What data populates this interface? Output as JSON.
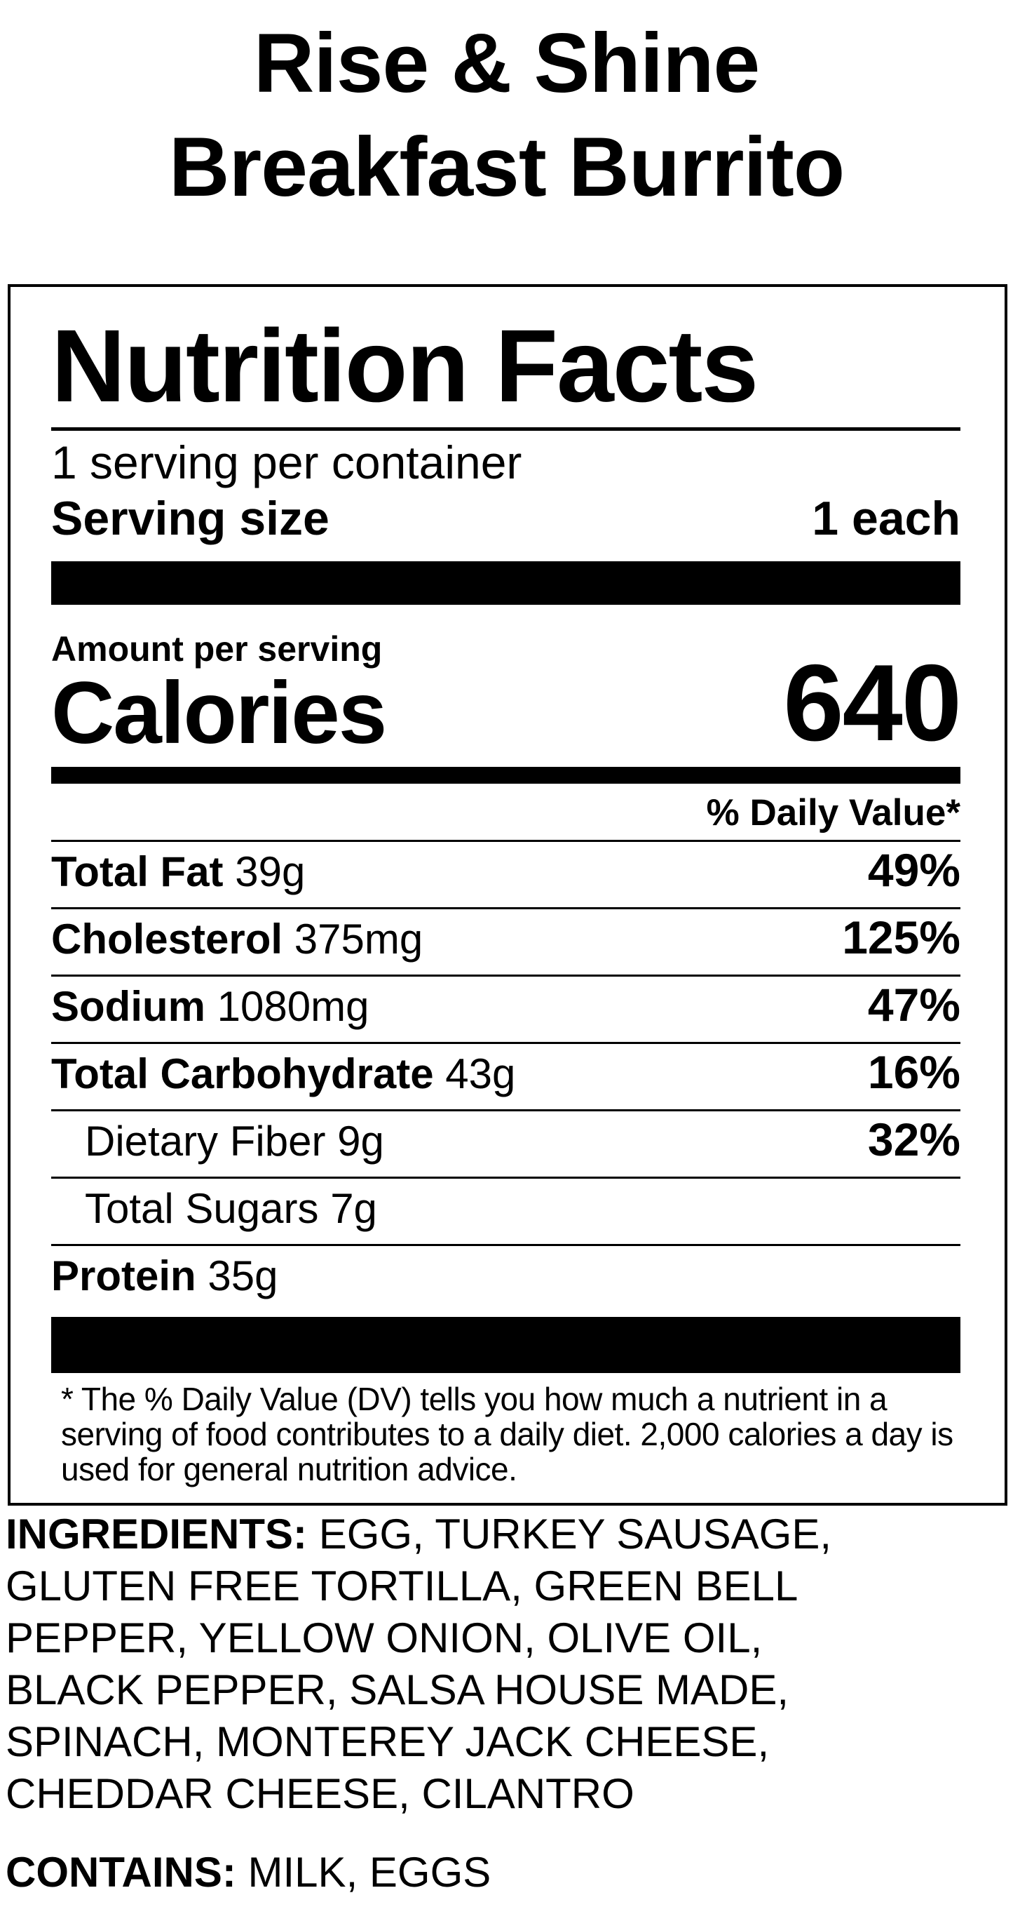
{
  "title": {
    "lines": [
      "Rise & Shine",
      "Breakfast Burrito"
    ]
  },
  "nutrition_label": {
    "heading": "Nutrition Facts",
    "servings_per_container": "1 serving per container",
    "serving_size": {
      "label": "Serving size",
      "value": "1 each"
    },
    "amount_per_serving": "Amount per serving",
    "calories": {
      "label": "Calories",
      "value": "640"
    },
    "daily_value_header": "% Daily Value*",
    "nutrients": [
      {
        "name": "Total Fat",
        "amount": "39g",
        "daily_value": "49%"
      },
      {
        "name": "Cholesterol",
        "amount": "375mg",
        "daily_value": "125%"
      },
      {
        "name": "Sodium",
        "amount": "1080mg",
        "daily_value": "47%"
      },
      {
        "name": "Total Carbohydrate",
        "amount": "43g",
        "daily_value": "16%"
      },
      {
        "name": "Dietary Fiber",
        "amount": "9g",
        "daily_value": "32%"
      },
      {
        "name": "Total Sugars",
        "amount": "7g",
        "daily_value": ""
      },
      {
        "name": "Protein",
        "amount": "35g",
        "daily_value": ""
      }
    ],
    "footnote": "* The % Daily Value (DV) tells you how much a nutrient in a serving of food contributes to a daily diet. 2,000 calories a day is used for general nutrition advice."
  },
  "ingredients": {
    "label": "INGREDIENTS:",
    "text": "EGG, TURKEY SAUSAGE, GLUTEN FREE TORTILLA, GREEN BELL PEPPER, YELLOW ONION, OLIVE OIL, BLACK PEPPER, SALSA HOUSE MADE, SPINACH, MONTEREY JACK CHEESE, CHEDDAR CHEESE, CILANTRO"
  },
  "contains": {
    "label": "CONTAINS:",
    "text": "MILK, EGGS"
  },
  "colors": {
    "ink": "#000000",
    "background": "#ffffff"
  }
}
